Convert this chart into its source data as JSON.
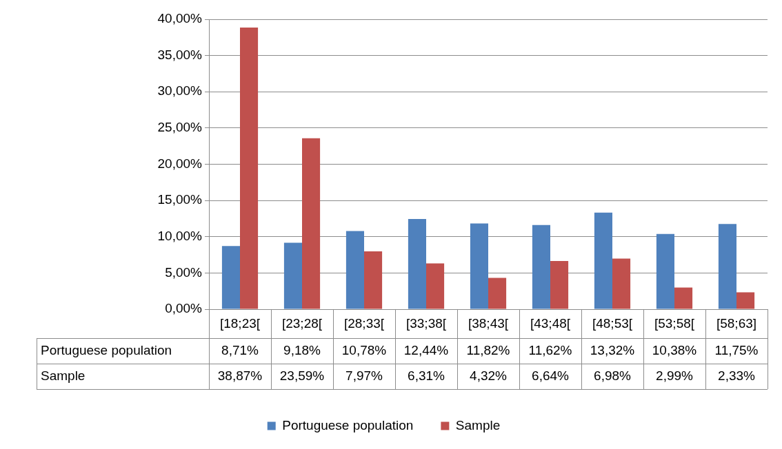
{
  "chart_data": {
    "type": "bar",
    "categories": [
      "[18;23[",
      "[23;28[",
      "[28;33[",
      "[33;38[",
      "[38;43[",
      "[43;48[",
      "[48;53[",
      "[53;58[",
      "[58;63]"
    ],
    "series": [
      {
        "name": "Portuguese population",
        "color": "#4f81bd",
        "values": [
          8.71,
          9.18,
          10.78,
          12.44,
          11.82,
          11.62,
          13.32,
          10.38,
          11.75
        ],
        "value_labels": [
          "8,71%",
          "9,18%",
          "10,78%",
          "12,44%",
          "11,82%",
          "11,62%",
          "13,32%",
          "10,38%",
          "11,75%"
        ]
      },
      {
        "name": "Sample",
        "color": "#c0504d",
        "values": [
          38.87,
          23.59,
          7.97,
          6.31,
          4.32,
          6.64,
          6.98,
          2.99,
          2.33
        ],
        "value_labels": [
          "38,87%",
          "23,59%",
          "7,97%",
          "6,31%",
          "4,32%",
          "6,64%",
          "6,98%",
          "2,99%",
          "2,33%"
        ]
      }
    ],
    "ylim": [
      0,
      40
    ],
    "yticks": [
      {
        "value": 0,
        "label": "0,00%"
      },
      {
        "value": 5,
        "label": "5,00%"
      },
      {
        "value": 10,
        "label": "10,00%"
      },
      {
        "value": 15,
        "label": "15,00%"
      },
      {
        "value": 20,
        "label": "20,00%"
      },
      {
        "value": 25,
        "label": "25,00%"
      },
      {
        "value": 30,
        "label": "30,00%"
      },
      {
        "value": 35,
        "label": "35,00%"
      },
      {
        "value": 40,
        "label": "40,00%"
      }
    ],
    "grid": "y",
    "legend": "bottom"
  }
}
